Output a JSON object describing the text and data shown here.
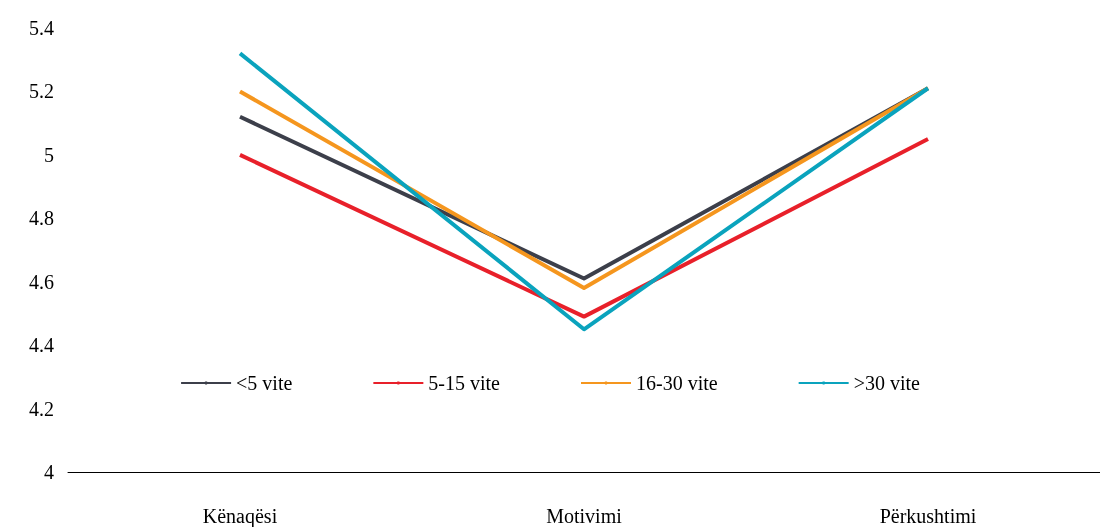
{
  "chart_data": {
    "type": "line",
    "categories": [
      "Kënaqësi",
      "Motivimi",
      "Përkushtimi"
    ],
    "series": [
      {
        "name": "<5 vite",
        "color": "#3c3f4a",
        "values": [
          5.12,
          4.61,
          5.21
        ]
      },
      {
        "name": "5-15 vite",
        "color": "#e8202a",
        "values": [
          5.0,
          4.49,
          5.05
        ]
      },
      {
        "name": "16-30 vite",
        "color": "#f5961e",
        "values": [
          5.2,
          4.58,
          5.21
        ]
      },
      {
        "name": ">30 vite",
        "color": "#0aa3bd",
        "values": [
          5.32,
          4.45,
          5.21
        ]
      }
    ],
    "ylim": [
      4,
      5.4
    ],
    "yticks": [
      4,
      4.2,
      4.4,
      4.6,
      4.8,
      5,
      5.2,
      5.4
    ],
    "grid": false,
    "legend": "bottom",
    "marker": "none",
    "line_style": "solid"
  }
}
